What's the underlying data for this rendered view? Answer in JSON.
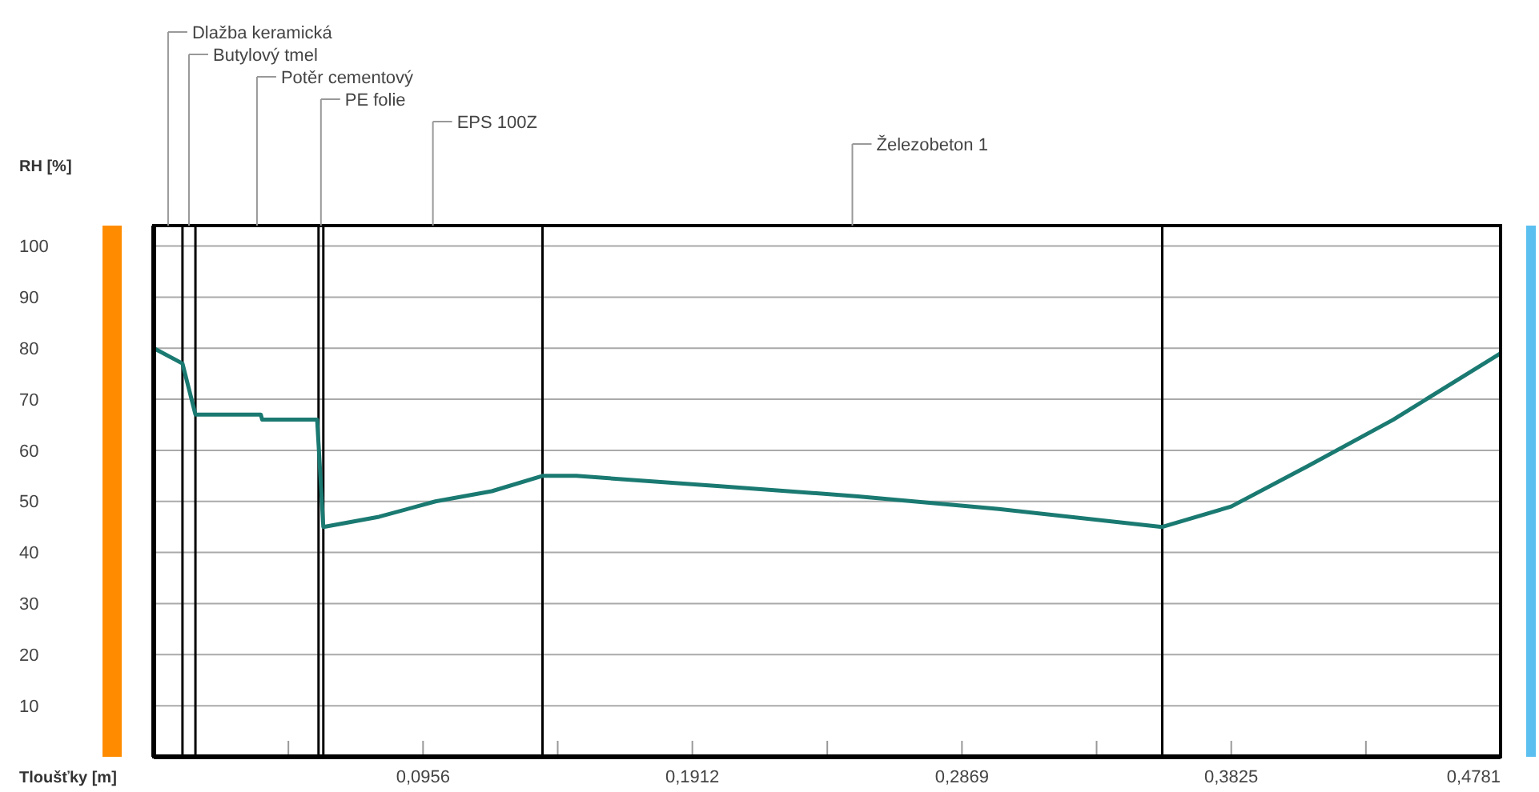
{
  "chart_data": {
    "type": "line",
    "xlabel": "Tloušťky [m]",
    "ylabel": "RH [%]",
    "x": [
      0,
      0.0102,
      0.0148,
      0.038,
      0.0385,
      0.058,
      0.0602,
      0.08,
      0.1,
      0.12,
      0.138,
      0.15,
      0.2,
      0.25,
      0.3,
      0.358,
      0.3825,
      0.41,
      0.44,
      0.4781
    ],
    "series": [
      {
        "color": "#1a7a72",
        "values": [
          80,
          77,
          67,
          67,
          66,
          66,
          45,
          47,
          50,
          52,
          55,
          55,
          53,
          51,
          48.5,
          45,
          49,
          57,
          66,
          79
        ]
      }
    ],
    "xlim": [
      0,
      0.4781
    ],
    "ylim": [
      0,
      104
    ],
    "xticks": [
      {
        "value": 0.0478,
        "label": null
      },
      {
        "value": 0.0956,
        "label": "0,0956"
      },
      {
        "value": 0.1434,
        "label": null
      },
      {
        "value": 0.1912,
        "label": "0,1912"
      },
      {
        "value": 0.2391,
        "label": null
      },
      {
        "value": 0.2869,
        "label": "0,2869"
      },
      {
        "value": 0.3347,
        "label": null
      },
      {
        "value": 0.3825,
        "label": "0,3825"
      },
      {
        "value": 0.4303,
        "label": null
      },
      {
        "value": 0.4781,
        "label": "0,4781"
      }
    ],
    "yticks": [
      10,
      20,
      30,
      40,
      50,
      60,
      70,
      80,
      90,
      100
    ],
    "grid": "y",
    "marker": "none",
    "line_style": "solid",
    "ref_lines": [
      {
        "axis": "x",
        "value": 0.0102,
        "color": "#000000"
      },
      {
        "axis": "x",
        "value": 0.0148,
        "color": "#000000"
      },
      {
        "axis": "x",
        "value": 0.0585,
        "color": "#000000"
      },
      {
        "axis": "x",
        "value": 0.0602,
        "color": "#000000"
      },
      {
        "axis": "x",
        "value": 0.138,
        "color": "#000000"
      },
      {
        "axis": "x",
        "value": 0.358,
        "color": "#000000"
      }
    ],
    "annotations": [
      "Dlažba keramická",
      "Butylový tmel",
      "Potěr cementový",
      "PE folie",
      "EPS 100Z",
      "Železobeton 1"
    ]
  }
}
